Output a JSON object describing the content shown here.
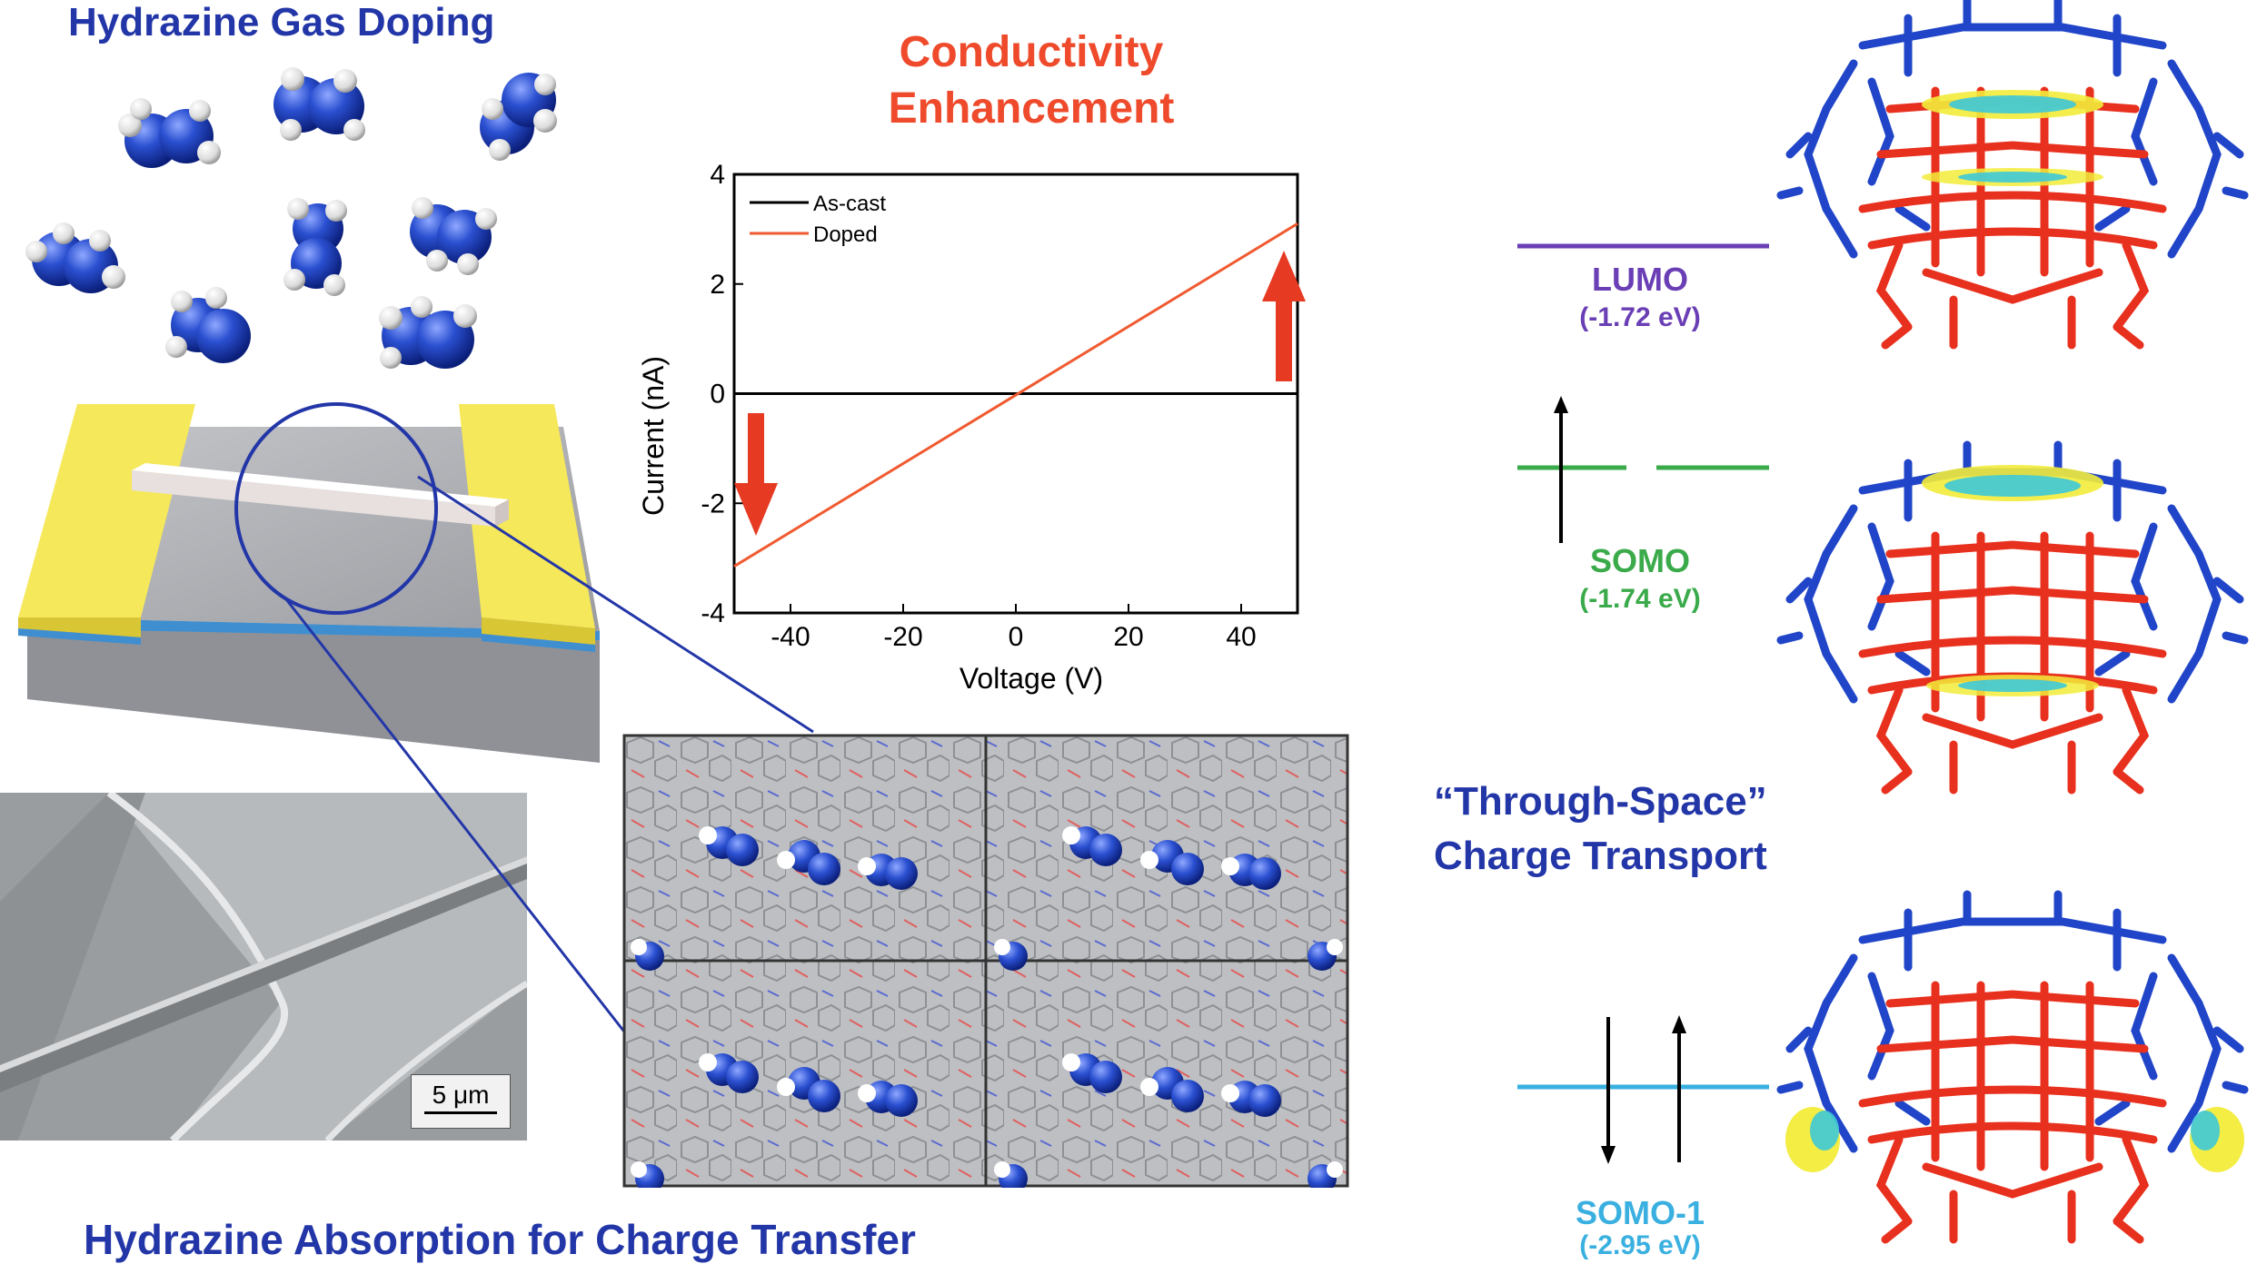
{
  "panel_titles": {
    "gas_doping": "Hydrazine Gas Doping",
    "conductivity_line1": "Conductivity",
    "conductivity_line2": "Enhancement",
    "absorption": "Hydrazine Absorption for Charge Transfer",
    "through_space_line1": "“Through-Space”",
    "through_space_line2": "Charge Transport"
  },
  "scale_bar": "5 μm",
  "energy_levels": [
    {
      "name": "LUMO",
      "energy": "(-1.72 eV)",
      "color": "#6a3fb5"
    },
    {
      "name": "SOMO",
      "energy": "(-1.74 eV)",
      "color": "#3aaa4a"
    },
    {
      "name": "SOMO-1",
      "energy": "(-2.95 eV)",
      "color": "#3ab0e0"
    }
  ],
  "colors": {
    "title_blue": "#2336a8",
    "title_red": "#ee4a2b",
    "molecule_blue": "#2145c8",
    "molecule_red": "#e8301e",
    "electrode_gold": "#f5e85a"
  },
  "chart_data": {
    "type": "line",
    "xlabel": "Voltage (V)",
    "ylabel": "Current (nA)",
    "xlim": [
      -50,
      50
    ],
    "ylim": [
      -4,
      4
    ],
    "xticks": [
      -40,
      -20,
      0,
      20,
      40
    ],
    "yticks": [
      -4,
      -2,
      0,
      2,
      4
    ],
    "legend_position": "top-left",
    "series": [
      {
        "name": "As-cast",
        "color": "#000000",
        "x": [
          -50,
          50
        ],
        "y": [
          0,
          0
        ]
      },
      {
        "name": "Doped",
        "color": "#f05a30",
        "x": [
          -50,
          50
        ],
        "y": [
          -3.15,
          3.1
        ]
      }
    ]
  }
}
